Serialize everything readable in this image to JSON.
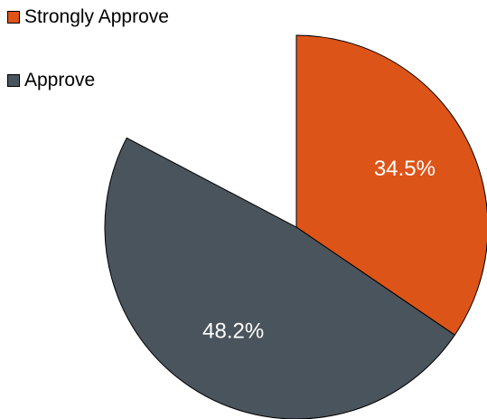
{
  "chart_data": {
    "type": "pie",
    "title": "",
    "categories": [
      "Strongly Approve",
      "Approve"
    ],
    "values": [
      34.5,
      48.2
    ],
    "value_labels": [
      "34.5%",
      "48.2%"
    ],
    "colors": [
      "#dd5419",
      "#4a545c"
    ],
    "label_color": "#ffffff",
    "legend_placement": "top-left",
    "start_angle_deg": 0,
    "direction": "clockwise"
  }
}
